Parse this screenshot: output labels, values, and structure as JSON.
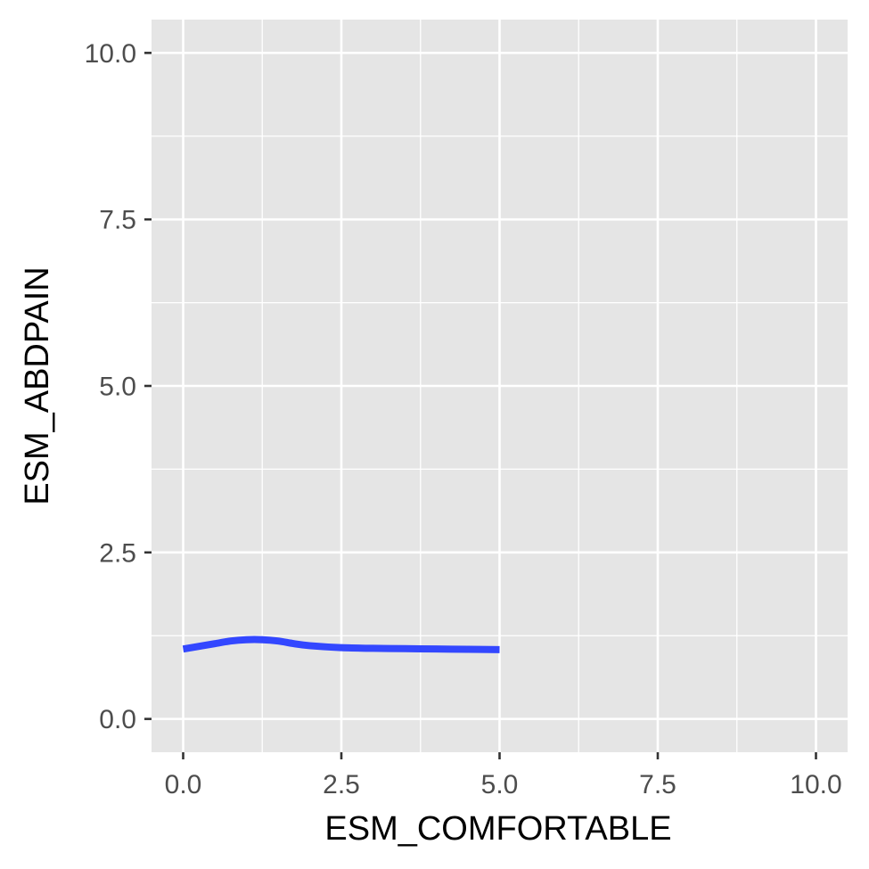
{
  "chart_data": {
    "type": "line",
    "title": "",
    "xlabel": "ESM_COMFORTABLE",
    "ylabel": "ESM_ABDPAIN",
    "xlim": [
      -0.5,
      10.5
    ],
    "ylim": [
      -0.5,
      10.5
    ],
    "x_ticks": [
      "0.0",
      "2.5",
      "5.0",
      "7.5",
      "10.0"
    ],
    "y_ticks": [
      "0.0",
      "2.5",
      "5.0",
      "7.5",
      "10.0"
    ],
    "grid": true,
    "panel_background": "#e5e5e5",
    "series": [
      {
        "color": "#3347ff",
        "smooth": true,
        "confidence_band": true,
        "x": [
          0.0,
          0.25,
          0.5,
          0.75,
          1.0,
          1.25,
          1.5,
          1.75,
          2.0,
          2.5,
          3.0,
          3.5,
          4.0,
          4.5,
          5.0
        ],
        "y": [
          1.05,
          1.09,
          1.13,
          1.17,
          1.19,
          1.19,
          1.17,
          1.13,
          1.1,
          1.07,
          1.06,
          1.055,
          1.05,
          1.045,
          1.04
        ],
        "lower": [
          1.02,
          1.06,
          1.09,
          1.13,
          1.15,
          1.15,
          1.13,
          1.1,
          1.08,
          1.06,
          1.05,
          1.04,
          1.03,
          1.02,
          1.01
        ],
        "upper": [
          1.08,
          1.12,
          1.17,
          1.21,
          1.23,
          1.23,
          1.21,
          1.16,
          1.12,
          1.08,
          1.07,
          1.07,
          1.07,
          1.07,
          1.07
        ]
      }
    ]
  }
}
